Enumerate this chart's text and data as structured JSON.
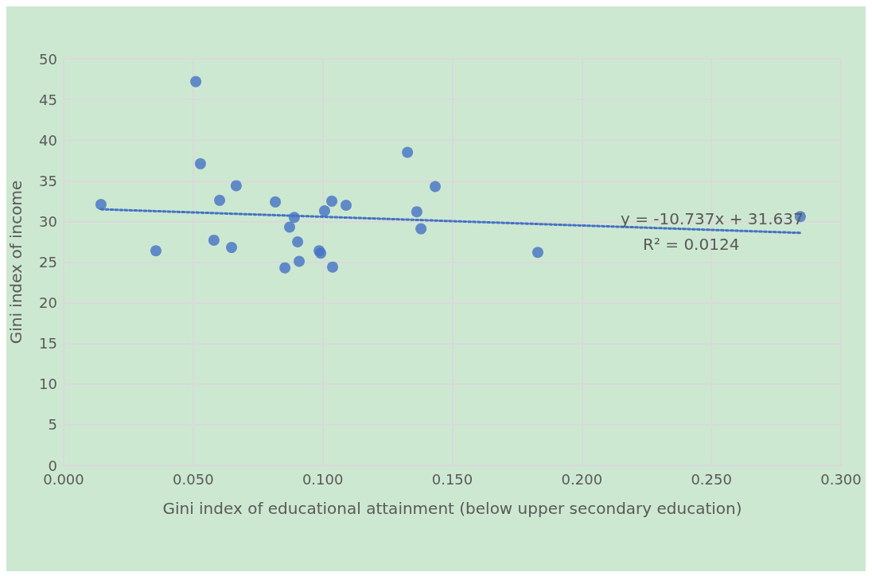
{
  "chart_data": {
    "type": "scatter",
    "xlabel": "Gini index of educational attainment (below upper secondary education)",
    "ylabel": "Gini index of income",
    "xlim": [
      0,
      0.3
    ],
    "xticks": [
      {
        "value": 0,
        "label": "0.000"
      },
      {
        "value": 0.05,
        "label": "0.050"
      },
      {
        "value": 0.1,
        "label": "0.100"
      },
      {
        "value": 0.15,
        "label": "0.150"
      },
      {
        "value": 0.2,
        "label": "0.200"
      },
      {
        "value": 0.25,
        "label": "0.250"
      },
      {
        "value": 0.3,
        "label": "0.300"
      }
    ],
    "ylim": [
      0,
      50
    ],
    "yticks": [
      0,
      5,
      10,
      15,
      20,
      25,
      30,
      35,
      40,
      45,
      50
    ],
    "grid": true,
    "marker": "circle",
    "series": [
      {
        "color": "#4472c4",
        "x": [
          0.0144,
          0.0356,
          0.051,
          0.0528,
          0.058,
          0.0602,
          0.0648,
          0.0666,
          0.0817,
          0.0854,
          0.0872,
          0.089,
          0.0903,
          0.0909,
          0.0986,
          0.0992,
          0.1007,
          0.1035,
          0.1038,
          0.109,
          0.1327,
          0.1363,
          0.1379,
          0.1434,
          0.183,
          0.2843
        ],
        "values": [
          32.1,
          26.4,
          47.2,
          37.1,
          27.7,
          32.6,
          26.8,
          34.4,
          32.4,
          24.3,
          29.3,
          30.5,
          27.5,
          25.1,
          26.4,
          26.1,
          31.3,
          32.5,
          24.4,
          32.0,
          38.5,
          31.2,
          29.1,
          34.3,
          26.2,
          30.6
        ]
      },
      {
        "type": "line",
        "color": "#4472c4",
        "line_style": "dotted",
        "marker": "none",
        "x": [
          0.0144,
          0.2843
        ],
        "values": [
          31.5,
          28.6
        ]
      }
    ],
    "annotations": [
      "y = -10.737x + 31.637",
      "R² = 0.0124"
    ]
  }
}
